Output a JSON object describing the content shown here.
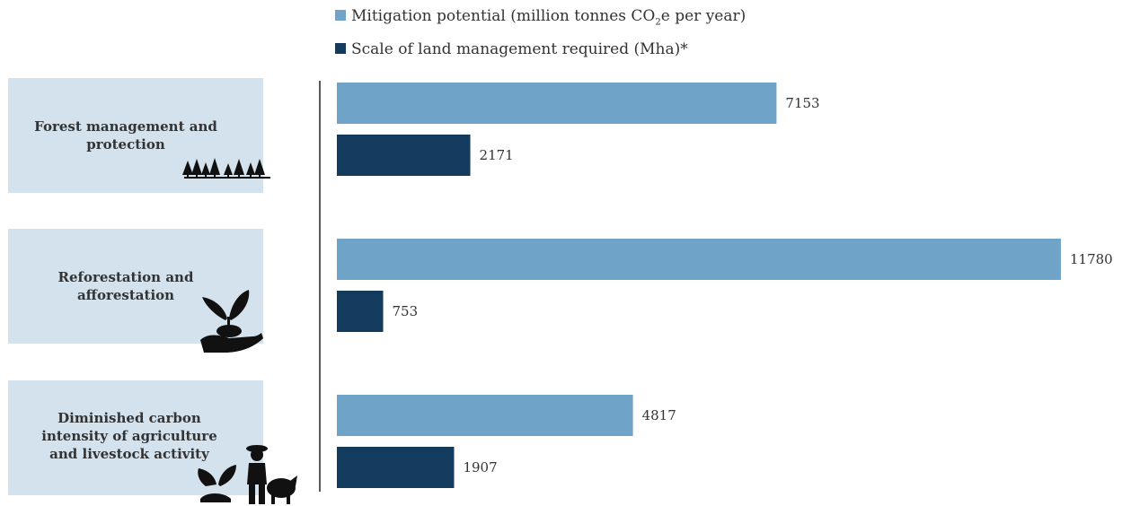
{
  "legend": {
    "mitigation": {
      "pre": "Mitigation potential (million tonnes CO",
      "sub": "2",
      "post": "e per year)"
    },
    "land": "Scale of land management required (Mha)*"
  },
  "colors": {
    "mitigation": "#6fa3c7",
    "land": "#133b5e",
    "category_box": "#d3e2ec",
    "axis": "#222222"
  },
  "categories": [
    {
      "label": "Forest management and protection",
      "icon": "forest-trees-icon"
    },
    {
      "label": "Reforestation and afforestation",
      "icon": "hand-holding-seedling-icon"
    },
    {
      "label": "Diminished carbon intensity of agriculture and livestock activity",
      "icon": "farmer-plant-pig-icon"
    }
  ],
  "chart_data": {
    "type": "bar",
    "orientation": "horizontal",
    "categories": [
      "Forest management and protection",
      "Reforestation and afforestation",
      "Diminished carbon intensity of agriculture and livestock activity"
    ],
    "series": [
      {
        "name": "Mitigation potential (million tonnes CO2e per year)",
        "values": [
          7153,
          11780,
          4817
        ],
        "color": "#6fa3c7"
      },
      {
        "name": "Scale of land management required (Mha)*",
        "values": [
          2171,
          753,
          1907
        ],
        "color": "#133b5e"
      }
    ],
    "data_labels": [
      [
        "7153",
        "2171"
      ],
      [
        "11780",
        "753"
      ],
      [
        "4817",
        "1907"
      ]
    ],
    "xlim": [
      0,
      11780
    ],
    "grid": false,
    "legend_position": "top"
  }
}
